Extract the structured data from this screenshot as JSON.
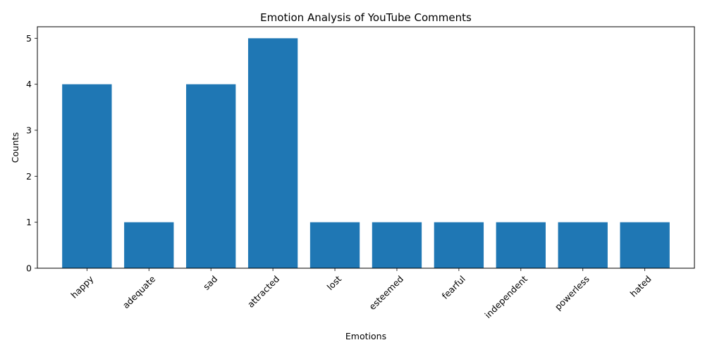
{
  "chart_data": {
    "type": "bar",
    "title": "Emotion Analysis of YouTube Comments",
    "xlabel": "Emotions",
    "ylabel": "Counts",
    "categories": [
      "happy",
      "adequate",
      "sad",
      "attracted",
      "lost",
      "esteemed",
      "fearful",
      "independent",
      "powerless",
      "hated"
    ],
    "values": [
      4,
      1,
      4,
      5,
      1,
      1,
      1,
      1,
      1,
      1
    ],
    "ylim": [
      0,
      5.25
    ],
    "yticks": [
      0,
      1,
      2,
      3,
      4,
      5
    ],
    "bar_color": "#1f77b4",
    "grid": false,
    "legend": "none"
  }
}
